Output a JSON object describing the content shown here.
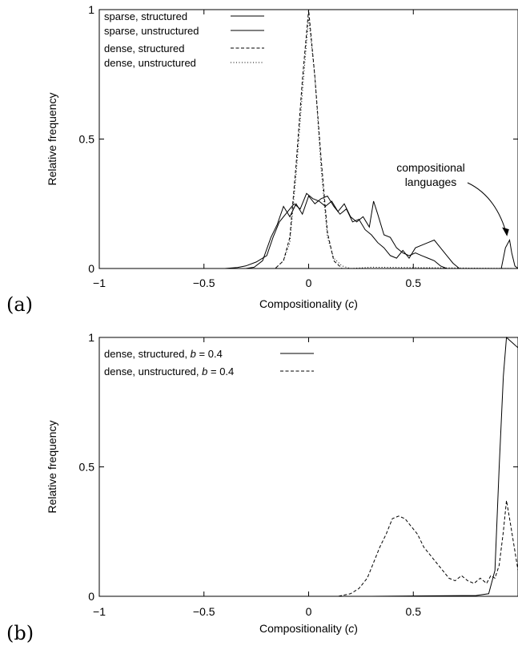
{
  "chart_data": [
    {
      "panel_label": "(a)",
      "type": "line",
      "xlabel": "Compositionality (",
      "xlabel_var": "c",
      "xlabel_end": ")",
      "ylabel": "Relative frequency",
      "xlim": [
        -1,
        1
      ],
      "ylim": [
        0,
        1
      ],
      "xticks": [
        "−1",
        "−0.5",
        "0",
        "0.5"
      ],
      "yticks": [
        "0",
        "0.5",
        "1"
      ],
      "legend_position": "top-left",
      "annotation": {
        "text": [
          "compositional",
          "languages"
        ],
        "target": [
          0.97,
          0.11
        ]
      },
      "series": [
        {
          "name": "sparse, structured",
          "style": "solid",
          "points": [
            [
              -1,
              0
            ],
            [
              -0.4,
              0
            ],
            [
              -0.34,
              0.004
            ],
            [
              -0.3,
              0.01
            ],
            [
              -0.25,
              0.025
            ],
            [
              -0.2,
              0.05
            ],
            [
              -0.17,
              0.12
            ],
            [
              -0.14,
              0.18
            ],
            [
              -0.1,
              0.22
            ],
            [
              -0.07,
              0.25
            ],
            [
              -0.04,
              0.23
            ],
            [
              -0.01,
              0.29
            ],
            [
              0.02,
              0.27
            ],
            [
              0.05,
              0.26
            ],
            [
              0.08,
              0.24
            ],
            [
              0.11,
              0.26
            ],
            [
              0.14,
              0.22
            ],
            [
              0.17,
              0.25
            ],
            [
              0.2,
              0.2
            ],
            [
              0.23,
              0.18
            ],
            [
              0.26,
              0.2
            ],
            [
              0.29,
              0.16
            ],
            [
              0.31,
              0.26
            ],
            [
              0.33,
              0.21
            ],
            [
              0.36,
              0.13
            ],
            [
              0.39,
              0.12
            ],
            [
              0.42,
              0.08
            ],
            [
              0.45,
              0.06
            ],
            [
              0.48,
              0.05
            ],
            [
              0.51,
              0.06
            ],
            [
              0.54,
              0.05
            ],
            [
              0.57,
              0.04
            ],
            [
              0.6,
              0.03
            ],
            [
              0.63,
              0.01
            ],
            [
              0.66,
              0
            ],
            [
              0.92,
              0
            ],
            [
              0.94,
              0.08
            ],
            [
              0.96,
              0.11
            ],
            [
              0.97,
              0.06
            ],
            [
              0.985,
              0.01
            ],
            [
              1,
              0
            ]
          ]
        },
        {
          "name": "sparse, unstructured",
          "style": "solid",
          "points": [
            [
              -1,
              0
            ],
            [
              -0.3,
              0
            ],
            [
              -0.26,
              0.005
            ],
            [
              -0.22,
              0.03
            ],
            [
              -0.18,
              0.12
            ],
            [
              -0.15,
              0.17
            ],
            [
              -0.12,
              0.24
            ],
            [
              -0.09,
              0.2
            ],
            [
              -0.06,
              0.25
            ],
            [
              -0.03,
              0.21
            ],
            [
              0,
              0.28
            ],
            [
              0.03,
              0.25
            ],
            [
              0.06,
              0.27
            ],
            [
              0.09,
              0.28
            ],
            [
              0.12,
              0.24
            ],
            [
              0.15,
              0.21
            ],
            [
              0.18,
              0.23
            ],
            [
              0.21,
              0.18
            ],
            [
              0.24,
              0.19
            ],
            [
              0.27,
              0.15
            ],
            [
              0.3,
              0.13
            ],
            [
              0.33,
              0.1
            ],
            [
              0.36,
              0.08
            ],
            [
              0.39,
              0.05
            ],
            [
              0.42,
              0.04
            ],
            [
              0.45,
              0.07
            ],
            [
              0.48,
              0.04
            ],
            [
              0.51,
              0.08
            ],
            [
              0.54,
              0.09
            ],
            [
              0.57,
              0.1
            ],
            [
              0.6,
              0.11
            ],
            [
              0.63,
              0.08
            ],
            [
              0.66,
              0.05
            ],
            [
              0.69,
              0.02
            ],
            [
              0.72,
              0
            ],
            [
              1,
              0
            ]
          ]
        },
        {
          "name": "dense, structured",
          "style": "dashed",
          "points": [
            [
              -1,
              0
            ],
            [
              -0.16,
              0
            ],
            [
              -0.12,
              0.03
            ],
            [
              -0.09,
              0.12
            ],
            [
              -0.06,
              0.4
            ],
            [
              -0.03,
              0.73
            ],
            [
              0,
              1
            ],
            [
              0.03,
              0.74
            ],
            [
              0.06,
              0.42
            ],
            [
              0.09,
              0.14
            ],
            [
              0.12,
              0.03
            ],
            [
              0.16,
              0
            ],
            [
              1,
              0
            ]
          ]
        },
        {
          "name": "dense, unstructured",
          "style": "dotted",
          "points": [
            [
              -1,
              0
            ],
            [
              -0.16,
              0
            ],
            [
              -0.12,
              0.03
            ],
            [
              -0.09,
              0.1
            ],
            [
              -0.06,
              0.36
            ],
            [
              -0.03,
              0.68
            ],
            [
              0,
              0.97
            ],
            [
              0.03,
              0.74
            ],
            [
              0.06,
              0.38
            ],
            [
              0.09,
              0.12
            ],
            [
              0.12,
              0.04
            ],
            [
              0.16,
              0.01
            ],
            [
              0.2,
              0
            ],
            [
              0.3,
              0.005
            ],
            [
              1,
              0
            ]
          ]
        }
      ]
    },
    {
      "panel_label": "(b)",
      "type": "line",
      "xlabel": "Compositionality (",
      "xlabel_var": "c",
      "xlabel_end": ")",
      "ylabel": "Relative frequency",
      "xlim": [
        -1,
        1
      ],
      "ylim": [
        0,
        1
      ],
      "xticks": [
        "−1",
        "−0.5",
        "0",
        "0.5"
      ],
      "yticks": [
        "0",
        "0.5",
        "1"
      ],
      "legend_position": "top-left",
      "series": [
        {
          "name": "dense, structured, ",
          "name_var": "b",
          "name_end": " = 0.4",
          "style": "solid",
          "points": [
            [
              -1,
              0
            ],
            [
              0.3,
              0
            ],
            [
              0.6,
              0.002
            ],
            [
              0.8,
              0.003
            ],
            [
              0.86,
              0.01
            ],
            [
              0.89,
              0.1
            ],
            [
              0.91,
              0.5
            ],
            [
              0.93,
              0.85
            ],
            [
              0.945,
              1
            ],
            [
              1,
              0.96
            ]
          ]
        },
        {
          "name": "dense, unstructured, ",
          "name_var": "b",
          "name_end": " = 0.4",
          "style": "dashed",
          "points": [
            [
              -1,
              0
            ],
            [
              0.14,
              0
            ],
            [
              0.2,
              0.01
            ],
            [
              0.24,
              0.03
            ],
            [
              0.28,
              0.07
            ],
            [
              0.31,
              0.13
            ],
            [
              0.34,
              0.19
            ],
            [
              0.37,
              0.24
            ],
            [
              0.4,
              0.3
            ],
            [
              0.43,
              0.31
            ],
            [
              0.46,
              0.3
            ],
            [
              0.49,
              0.27
            ],
            [
              0.52,
              0.24
            ],
            [
              0.55,
              0.19
            ],
            [
              0.58,
              0.16
            ],
            [
              0.61,
              0.13
            ],
            [
              0.64,
              0.1
            ],
            [
              0.67,
              0.07
            ],
            [
              0.7,
              0.06
            ],
            [
              0.73,
              0.08
            ],
            [
              0.76,
              0.06
            ],
            [
              0.79,
              0.05
            ],
            [
              0.82,
              0.07
            ],
            [
              0.85,
              0.05
            ],
            [
              0.87,
              0.08
            ],
            [
              0.89,
              0.07
            ],
            [
              0.91,
              0.12
            ],
            [
              0.93,
              0.25
            ],
            [
              0.945,
              0.37
            ],
            [
              0.96,
              0.3
            ],
            [
              0.98,
              0.2
            ],
            [
              1,
              0.1
            ]
          ]
        }
      ]
    }
  ]
}
